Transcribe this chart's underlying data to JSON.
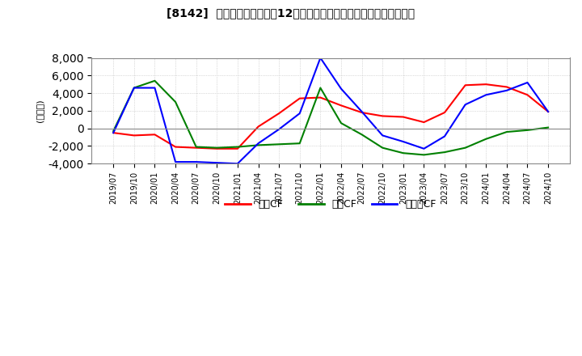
{
  "title": "[8142]  キャッシュフローの12か月移動合計の対前年同期増減額の推移",
  "ylabel": "(百万円)",
  "ylim": [
    -4000,
    8000
  ],
  "yticks": [
    -4000,
    -2000,
    0,
    2000,
    4000,
    6000,
    8000
  ],
  "legend_labels": [
    "営業CF",
    "投資CF",
    "フリーCF"
  ],
  "colors": {
    "営業CF": "#ff0000",
    "投資CF": "#008000",
    "フリーCF": "#0000ff"
  },
  "x_labels": [
    "2019/07",
    "2019/10",
    "2020/01",
    "2020/04",
    "2020/07",
    "2020/10",
    "2021/01",
    "2021/04",
    "2021/07",
    "2021/10",
    "2022/01",
    "2022/04",
    "2022/07",
    "2022/10",
    "2023/01",
    "2023/04",
    "2023/07",
    "2023/10",
    "2024/01",
    "2024/04",
    "2024/07",
    "2024/10"
  ],
  "営業CF": [
    -500,
    -800,
    -700,
    -2100,
    -2200,
    -2300,
    -2300,
    200,
    1700,
    3400,
    3500,
    2600,
    1800,
    1400,
    1300,
    700,
    1800,
    4900,
    5000,
    4700,
    3800,
    1900
  ],
  "投資CF": [
    -300,
    4600,
    5400,
    3000,
    -2100,
    -2200,
    -2100,
    -1900,
    -1800,
    -1700,
    4600,
    600,
    -700,
    -2200,
    -2800,
    -3000,
    -2700,
    -2200,
    -1200,
    -400,
    -200,
    100
  ],
  "フリーCF": [
    -500,
    4600,
    4600,
    -3800,
    -3800,
    -3900,
    -4000,
    -1700,
    -100,
    1700,
    8000,
    4500,
    1900,
    -800,
    -1500,
    -2300,
    -900,
    2700,
    3800,
    4300,
    5200,
    1900
  ],
  "background_color": "#ffffff",
  "grid_color": "#bbbbbb",
  "grid_style": "dotted"
}
